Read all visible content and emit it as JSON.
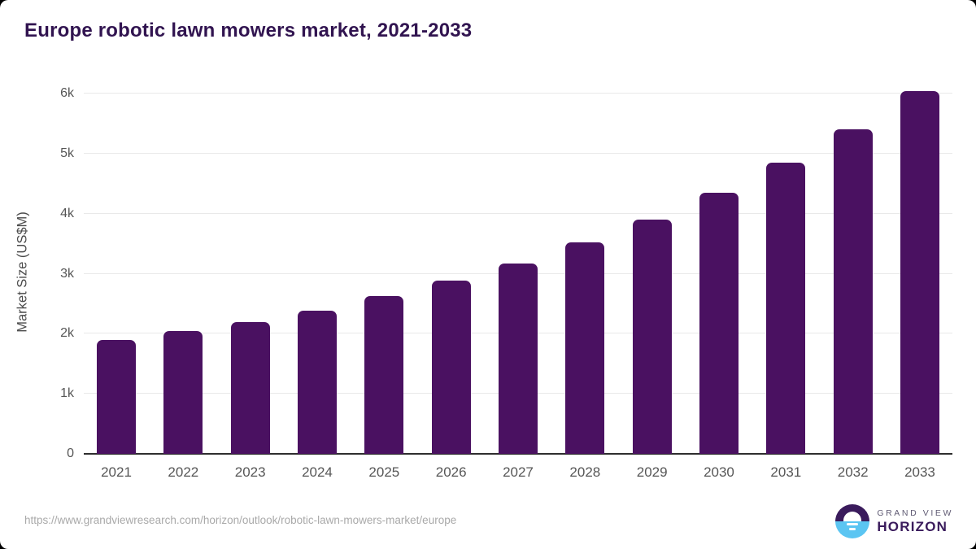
{
  "title": "Europe robotic lawn mowers market, 2021-2033",
  "chart_data": {
    "type": "bar",
    "title": "Europe robotic lawn mowers market, 2021-2033",
    "categories": [
      "2021",
      "2022",
      "2023",
      "2024",
      "2025",
      "2026",
      "2027",
      "2028",
      "2029",
      "2030",
      "2031",
      "2032",
      "2033"
    ],
    "values": [
      1900,
      2040,
      2200,
      2390,
      2630,
      2880,
      3170,
      3520,
      3900,
      4350,
      4850,
      5410,
      6050
    ],
    "xlabel": "",
    "ylabel": "Market Size (US$M)",
    "ylim": [
      0,
      6100
    ],
    "ytick_labels": [
      "0",
      "1k",
      "2k",
      "3k",
      "4k",
      "5k",
      "6k"
    ],
    "ytick_values": [
      0,
      1000,
      2000,
      3000,
      4000,
      5000,
      6000
    ],
    "grid": true,
    "legend": "none",
    "bar_color": "#4a1161"
  },
  "footer": {
    "source_url": "https://www.grandviewresearch.com/horizon/outlook/robotic-lawn-mowers-market/europe",
    "logo": {
      "line1": "GRAND VIEW",
      "line2": "HORIZON"
    }
  },
  "colors": {
    "bar": "#4a1161",
    "title_text": "#311450",
    "axis_text": "#565656",
    "gridline": "#e9e9e9",
    "baseline": "#2e2e2e",
    "url_text": "#a9a9a9",
    "logo_purple": "#3a1b5c",
    "logo_blue": "#5bc5f2"
  }
}
